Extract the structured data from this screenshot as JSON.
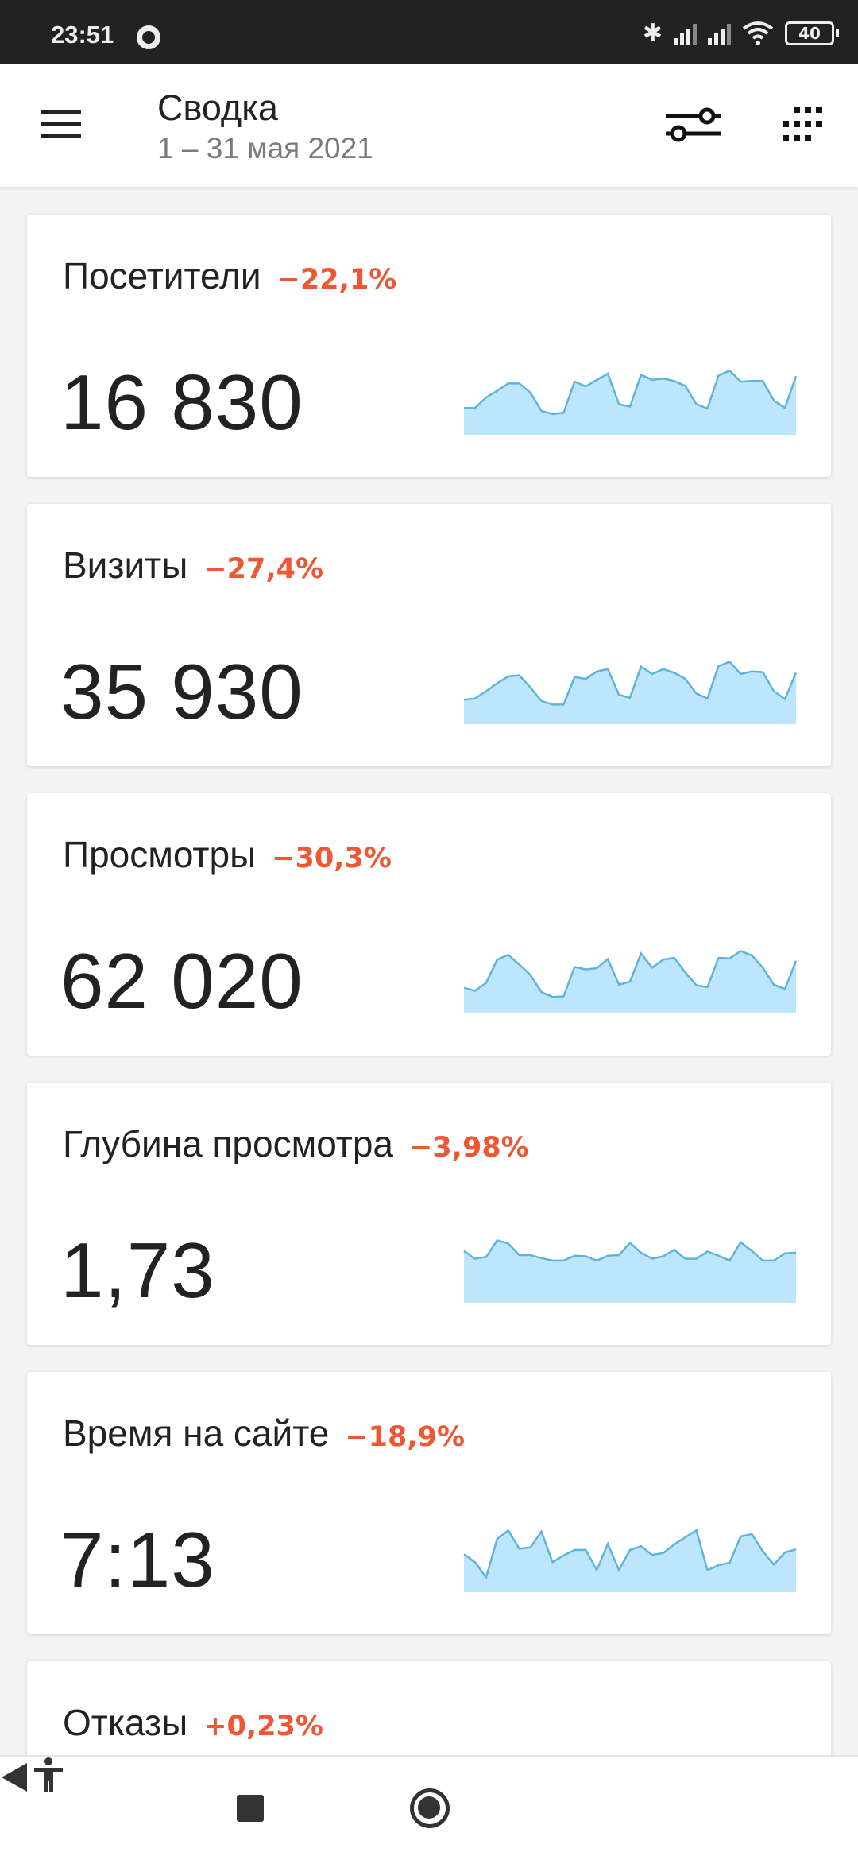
{
  "status_bar": {
    "time": "23:51",
    "battery": "40"
  },
  "header": {
    "title": "Сводка",
    "subtitle": "1 – 31 мая 2021"
  },
  "colors": {
    "delta_negative": "#ef5734",
    "spark_fill": "#bde5fb",
    "spark_line": "#5fb4dc"
  },
  "cards": [
    {
      "title": "Посетители",
      "delta": "−22,1%",
      "value": "16 830",
      "spark": [
        44,
        44,
        61,
        72,
        84,
        84,
        69,
        39,
        34,
        36,
        87,
        79,
        90,
        100,
        50,
        46,
        98,
        90,
        92,
        88,
        80,
        50,
        43,
        97,
        105,
        87,
        88,
        88,
        56,
        44,
        96
      ]
    },
    {
      "title": "Визиты",
      "delta": "−27,4%",
      "value": "35 930",
      "spark": [
        40,
        42,
        54,
        67,
        78,
        80,
        60,
        38,
        32,
        32,
        77,
        74,
        86,
        90,
        48,
        43,
        94,
        82,
        90,
        84,
        74,
        50,
        42,
        95,
        102,
        82,
        86,
        85,
        54,
        41,
        84
      ]
    },
    {
      "title": "Просмотры",
      "delta": "−30,3%",
      "value": "62 020",
      "spark": [
        42,
        37,
        50,
        88,
        96,
        80,
        63,
        35,
        27,
        28,
        76,
        72,
        74,
        89,
        47,
        52,
        98,
        75,
        88,
        91,
        67,
        46,
        43,
        91,
        90,
        102,
        95,
        75,
        47,
        40,
        86
      ]
    },
    {
      "title": "Глубина просмотра",
      "delta": "−3,98%",
      "value": "1,73",
      "spark": [
        85,
        72,
        75,
        102,
        97,
        78,
        78,
        73,
        69,
        69,
        77,
        76,
        69,
        77,
        78,
        98,
        82,
        72,
        76,
        87,
        72,
        72,
        84,
        77,
        69,
        99,
        85,
        69,
        69,
        81,
        82
      ]
    },
    {
      "title": "Время на сайте",
      "delta": "−18,9%",
      "value": "7:13",
      "spark": [
        62,
        49,
        24,
        87,
        101,
        71,
        73,
        99,
        49,
        60,
        69,
        69,
        36,
        79,
        36,
        69,
        75,
        61,
        64,
        78,
        90,
        101,
        36,
        44,
        48,
        91,
        95,
        67,
        45,
        65,
        70
      ]
    },
    {
      "title": "Отказы",
      "delta": "+0,23%",
      "value": "",
      "spark": []
    }
  ]
}
